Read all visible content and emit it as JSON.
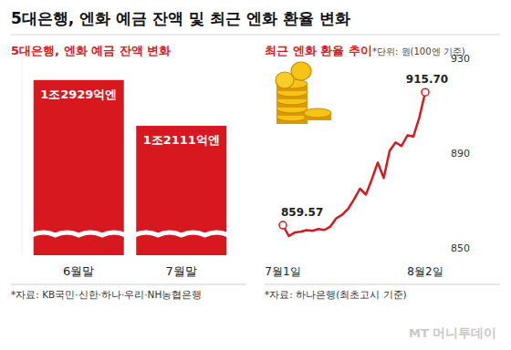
{
  "title": "5대은행, 엔화 예금 잔액 및 최근 엔화 환율 변화",
  "watermark": {
    "logo": "MT",
    "text": "머니투데이"
  },
  "chart_data": [
    {
      "type": "bar",
      "title": "5대은행, 엔화 예금 잔액 변화",
      "categories": [
        "6월말",
        "7월말"
      ],
      "values": [
        12929,
        12111
      ],
      "value_labels": [
        "1조2929억엔",
        "1조2111억엔"
      ],
      "color": "#d7191f",
      "ylim": [
        9800,
        13300
      ],
      "tick_labels": "x",
      "grid": false,
      "data_labels": true,
      "source": "*자료: KB국민·신한·하나·우리·NH농협은행"
    },
    {
      "type": "line",
      "title": "최근 엔화 환율 추이",
      "subtitle": "*단위: 원(100엔 기준)",
      "categories": [
        "7월1일",
        null,
        null,
        null,
        null,
        null,
        null,
        null,
        null,
        null,
        null,
        null,
        null,
        null,
        null,
        null,
        null,
        null,
        null,
        null,
        null,
        null,
        null,
        null,
        "8월2일"
      ],
      "values": [
        859.57,
        855.0,
        856.5,
        856.8,
        857.5,
        857.2,
        858.0,
        857.6,
        859.0,
        862.5,
        864.0,
        866.5,
        870.5,
        875.0,
        872.5,
        879.0,
        886.0,
        879.5,
        891.0,
        894.5,
        893.0,
        897.5,
        897.0,
        905.0,
        915.7
      ],
      "value_labels": [
        "859.57",
        null,
        null,
        null,
        null,
        null,
        null,
        null,
        null,
        null,
        null,
        null,
        null,
        null,
        null,
        null,
        null,
        null,
        null,
        null,
        null,
        null,
        null,
        null,
        "915.70"
      ],
      "color": "#d7191f",
      "ylim": [
        850,
        930
      ],
      "yticks": [
        850,
        890,
        930
      ],
      "grid": false,
      "data_labels": true,
      "source": "*자료: 하나은행(최초고시 기준)"
    }
  ]
}
